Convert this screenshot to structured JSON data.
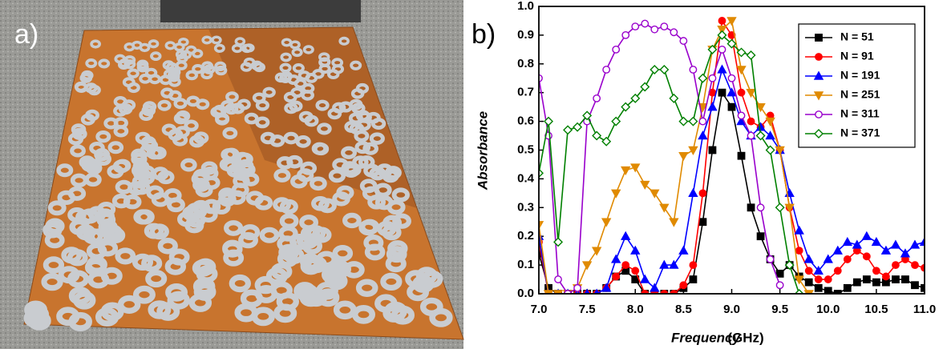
{
  "panel_a": {
    "label": "a)"
  },
  "chart_data": {
    "type": "line",
    "panel_label": "b)",
    "x_label": "Frequency",
    "x_label_unit": "(GHz)",
    "y_label": "Absorbance",
    "x": [
      7.0,
      7.1,
      7.2,
      7.3,
      7.4,
      7.5,
      7.6,
      7.7,
      7.8,
      7.9,
      8.0,
      8.1,
      8.2,
      8.3,
      8.4,
      8.5,
      8.6,
      8.7,
      8.8,
      8.9,
      9.0,
      9.1,
      9.2,
      9.3,
      9.4,
      9.5,
      9.6,
      9.7,
      9.8,
      9.9,
      10.0,
      10.1,
      10.2,
      10.3,
      10.4,
      10.5,
      10.6,
      10.7,
      10.8,
      10.9,
      11.0
    ],
    "xlim": [
      7,
      11
    ],
    "xticks": [
      {
        "value": 7,
        "label": "7.0"
      },
      7.5,
      {
        "value": 8,
        "label": "8.0"
      },
      8.5,
      {
        "value": 9,
        "label": "9.0"
      },
      9.5,
      {
        "value": 10,
        "label": "10.0"
      },
      10.5,
      {
        "value": 11,
        "label": "11.0"
      }
    ],
    "ylim": [
      0,
      1
    ],
    "yticks": [
      {
        "value": 0,
        "label": "0.0"
      },
      0.1,
      0.2,
      0.3,
      0.4,
      0.5,
      0.6,
      0.7,
      0.8,
      0.9,
      {
        "value": 1,
        "label": "1.0"
      }
    ],
    "legend_position": "upper right",
    "series": [
      {
        "name": "N = 51",
        "color": "#000000",
        "marker": "square",
        "filled": true,
        "values": [
          0.14,
          0.02,
          0,
          0,
          0,
          0,
          0,
          0.02,
          0.06,
          0.08,
          0.05,
          0,
          0,
          0,
          0,
          0.02,
          0.05,
          0.25,
          0.5,
          0.7,
          0.65,
          0.48,
          0.3,
          0.2,
          0.12,
          0.07,
          0.1,
          0.06,
          0.04,
          0.02,
          0.01,
          0,
          0.02,
          0.04,
          0.05,
          0.04,
          0.04,
          0.05,
          0.05,
          0.03,
          0.02
        ]
      },
      {
        "name": "N = 91",
        "color": "#ff0000",
        "marker": "circle",
        "filled": true,
        "values": [
          0.18,
          0,
          0,
          0,
          0,
          0,
          0,
          0.02,
          0.06,
          0.1,
          0.08,
          0,
          0,
          0,
          0,
          0.03,
          0.1,
          0.35,
          0.7,
          0.95,
          0.9,
          0.7,
          0.6,
          0.58,
          0.62,
          0.5,
          0.3,
          0.15,
          0.08,
          0.05,
          0.05,
          0.08,
          0.12,
          0.15,
          0.13,
          0.08,
          0.06,
          0.1,
          0.12,
          0.1,
          0.09
        ]
      },
      {
        "name": "N = 191",
        "color": "#0000ff",
        "marker": "triangle-up",
        "filled": true,
        "values": [
          0.2,
          0,
          0,
          0,
          0,
          0,
          0,
          0.02,
          0.12,
          0.2,
          0.15,
          0.05,
          0.02,
          0.1,
          0.1,
          0.15,
          0.35,
          0.55,
          0.65,
          0.78,
          0.7,
          0.6,
          0.55,
          0.58,
          0.55,
          0.5,
          0.35,
          0.22,
          0.12,
          0.08,
          0.12,
          0.15,
          0.18,
          0.17,
          0.2,
          0.18,
          0.15,
          0.17,
          0.14,
          0.17,
          0.18
        ]
      },
      {
        "name": "N = 251",
        "color": "#e08a00",
        "marker": "triangle-down",
        "filled": true,
        "values": [
          0.24,
          0,
          0,
          0,
          0.02,
          0.1,
          0.15,
          0.25,
          0.35,
          0.43,
          0.44,
          0.38,
          0.35,
          0.3,
          0.25,
          0.48,
          0.5,
          0.65,
          0.85,
          0.92,
          0.95,
          0.78,
          0.7,
          0.65,
          0.6,
          0.5,
          0.3,
          0.05,
          0,
          null,
          null,
          null,
          null,
          null,
          null,
          null,
          null,
          null,
          null,
          null,
          null
        ]
      },
      {
        "name": "N = 311",
        "color": "#9900cc",
        "marker": "circle",
        "filled": false,
        "values": [
          0.75,
          0.55,
          0.05,
          0,
          0.02,
          0.6,
          0.68,
          0.78,
          0.85,
          0.9,
          0.93,
          0.94,
          0.92,
          0.93,
          0.91,
          0.88,
          0.78,
          0.6,
          0.75,
          0.85,
          0.75,
          0.62,
          0.55,
          0.3,
          0.12,
          0.03,
          null,
          null,
          null,
          null,
          null,
          null,
          null,
          null,
          null,
          null,
          null,
          null,
          null,
          null,
          null
        ]
      },
      {
        "name": "N = 371",
        "color": "#008000",
        "marker": "diamond",
        "filled": false,
        "values": [
          0.42,
          0.6,
          0.18,
          0.57,
          0.58,
          0.62,
          0.55,
          0.53,
          0.6,
          0.65,
          0.68,
          0.72,
          0.78,
          0.78,
          0.68,
          0.6,
          0.6,
          0.75,
          0.85,
          0.9,
          0.87,
          0.84,
          0.83,
          0.55,
          0.5,
          0.3,
          0.1,
          0,
          null,
          null,
          null,
          null,
          null,
          null,
          null,
          null,
          null,
          null,
          null,
          null,
          null
        ]
      }
    ]
  }
}
